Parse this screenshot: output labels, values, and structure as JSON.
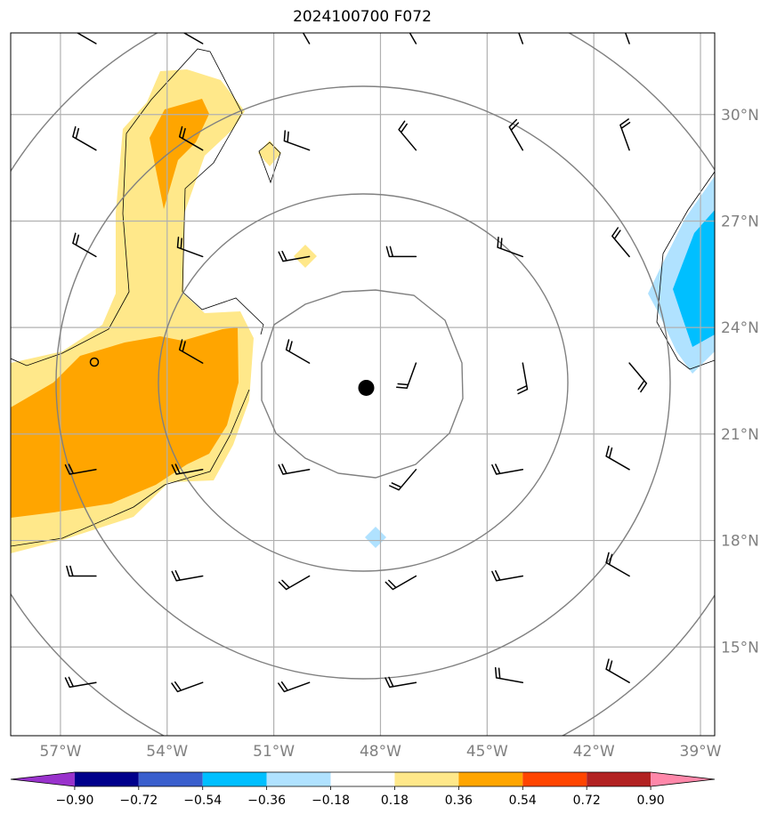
{
  "title": "2024100700 F072",
  "map": {
    "lon_range": [
      -58.4,
      -38.6
    ],
    "lat_range": [
      12.5,
      32.3
    ],
    "longitudes": [
      -57,
      -54,
      -51,
      -48,
      -45,
      -42,
      -39
    ],
    "lon_labels": [
      "57°W",
      "54°W",
      "51°W",
      "48°W",
      "45°W",
      "42°W",
      "39°W"
    ],
    "latitudes": [
      15,
      18,
      21,
      24,
      27,
      30
    ],
    "lat_labels": [
      "15°N",
      "18°N",
      "21°N",
      "24°N",
      "27°N",
      "30°N"
    ],
    "storm_center": {
      "lon": -48.4,
      "lat": 22.3
    },
    "wind_barbs": [
      {
        "lon": -56,
        "lat": 32,
        "dir": 300
      },
      {
        "lon": -53,
        "lat": 32,
        "dir": 300
      },
      {
        "lon": -50,
        "lat": 32,
        "dir": 330
      },
      {
        "lon": -47,
        "lat": 32,
        "dir": 330
      },
      {
        "lon": -44,
        "lat": 32,
        "dir": 340
      },
      {
        "lon": -41,
        "lat": 32,
        "dir": 340
      },
      {
        "lon": -56,
        "lat": 29,
        "dir": 300
      },
      {
        "lon": -53,
        "lat": 29,
        "dir": 300
      },
      {
        "lon": -50,
        "lat": 29,
        "dir": 290
      },
      {
        "lon": -47,
        "lat": 29,
        "dir": 320
      },
      {
        "lon": -44,
        "lat": 29,
        "dir": 330
      },
      {
        "lon": -41,
        "lat": 29,
        "dir": 340
      },
      {
        "lon": -56,
        "lat": 26,
        "dir": 300
      },
      {
        "lon": -53,
        "lat": 26,
        "dir": 290
      },
      {
        "lon": -50,
        "lat": 26,
        "dir": 260
      },
      {
        "lon": -47,
        "lat": 26,
        "dir": 270
      },
      {
        "lon": -44,
        "lat": 26,
        "dir": 290
      },
      {
        "lon": -41,
        "lat": 26,
        "dir": 320
      },
      {
        "lon": -53,
        "lat": 23,
        "dir": 300
      },
      {
        "lon": -50,
        "lat": 23,
        "dir": 300
      },
      {
        "lon": -47,
        "lat": 23,
        "dir": 200
      },
      {
        "lon": -44,
        "lat": 23,
        "dir": 170
      },
      {
        "lon": -41,
        "lat": 23,
        "dir": 140
      },
      {
        "lon": -56,
        "lat": 20,
        "dir": 260
      },
      {
        "lon": -53,
        "lat": 20,
        "dir": 260
      },
      {
        "lon": -50,
        "lat": 20,
        "dir": 260
      },
      {
        "lon": -47,
        "lat": 20,
        "dir": 220
      },
      {
        "lon": -44,
        "lat": 20,
        "dir": 260
      },
      {
        "lon": -41,
        "lat": 20,
        "dir": 300
      },
      {
        "lon": -56,
        "lat": 17,
        "dir": 270
      },
      {
        "lon": -53,
        "lat": 17,
        "dir": 260
      },
      {
        "lon": -50,
        "lat": 17,
        "dir": 240
      },
      {
        "lon": -47,
        "lat": 17,
        "dir": 240
      },
      {
        "lon": -44,
        "lat": 17,
        "dir": 260
      },
      {
        "lon": -41,
        "lat": 17,
        "dir": 300
      },
      {
        "lon": -56,
        "lat": 14,
        "dir": 260
      },
      {
        "lon": -53,
        "lat": 14,
        "dir": 250
      },
      {
        "lon": -50,
        "lat": 14,
        "dir": 250
      },
      {
        "lon": -47,
        "lat": 14,
        "dir": 260
      },
      {
        "lon": -44,
        "lat": 14,
        "dir": 280
      },
      {
        "lon": -41,
        "lat": 14,
        "dir": 300
      }
    ]
  },
  "colorbar": {
    "colors": [
      "#9932cc",
      "#00008b",
      "#3a5fcd",
      "#00bfff",
      "#b0e2ff",
      "#ffffff",
      "#ffe88a",
      "#ffa500",
      "#ff4500",
      "#b22222",
      "#ff88aa"
    ],
    "ticks": [
      "−0.90",
      "−0.72",
      "−0.54",
      "−0.36",
      "−0.18",
      "0.18",
      "0.36",
      "0.54",
      "0.72",
      "0.90"
    ]
  }
}
